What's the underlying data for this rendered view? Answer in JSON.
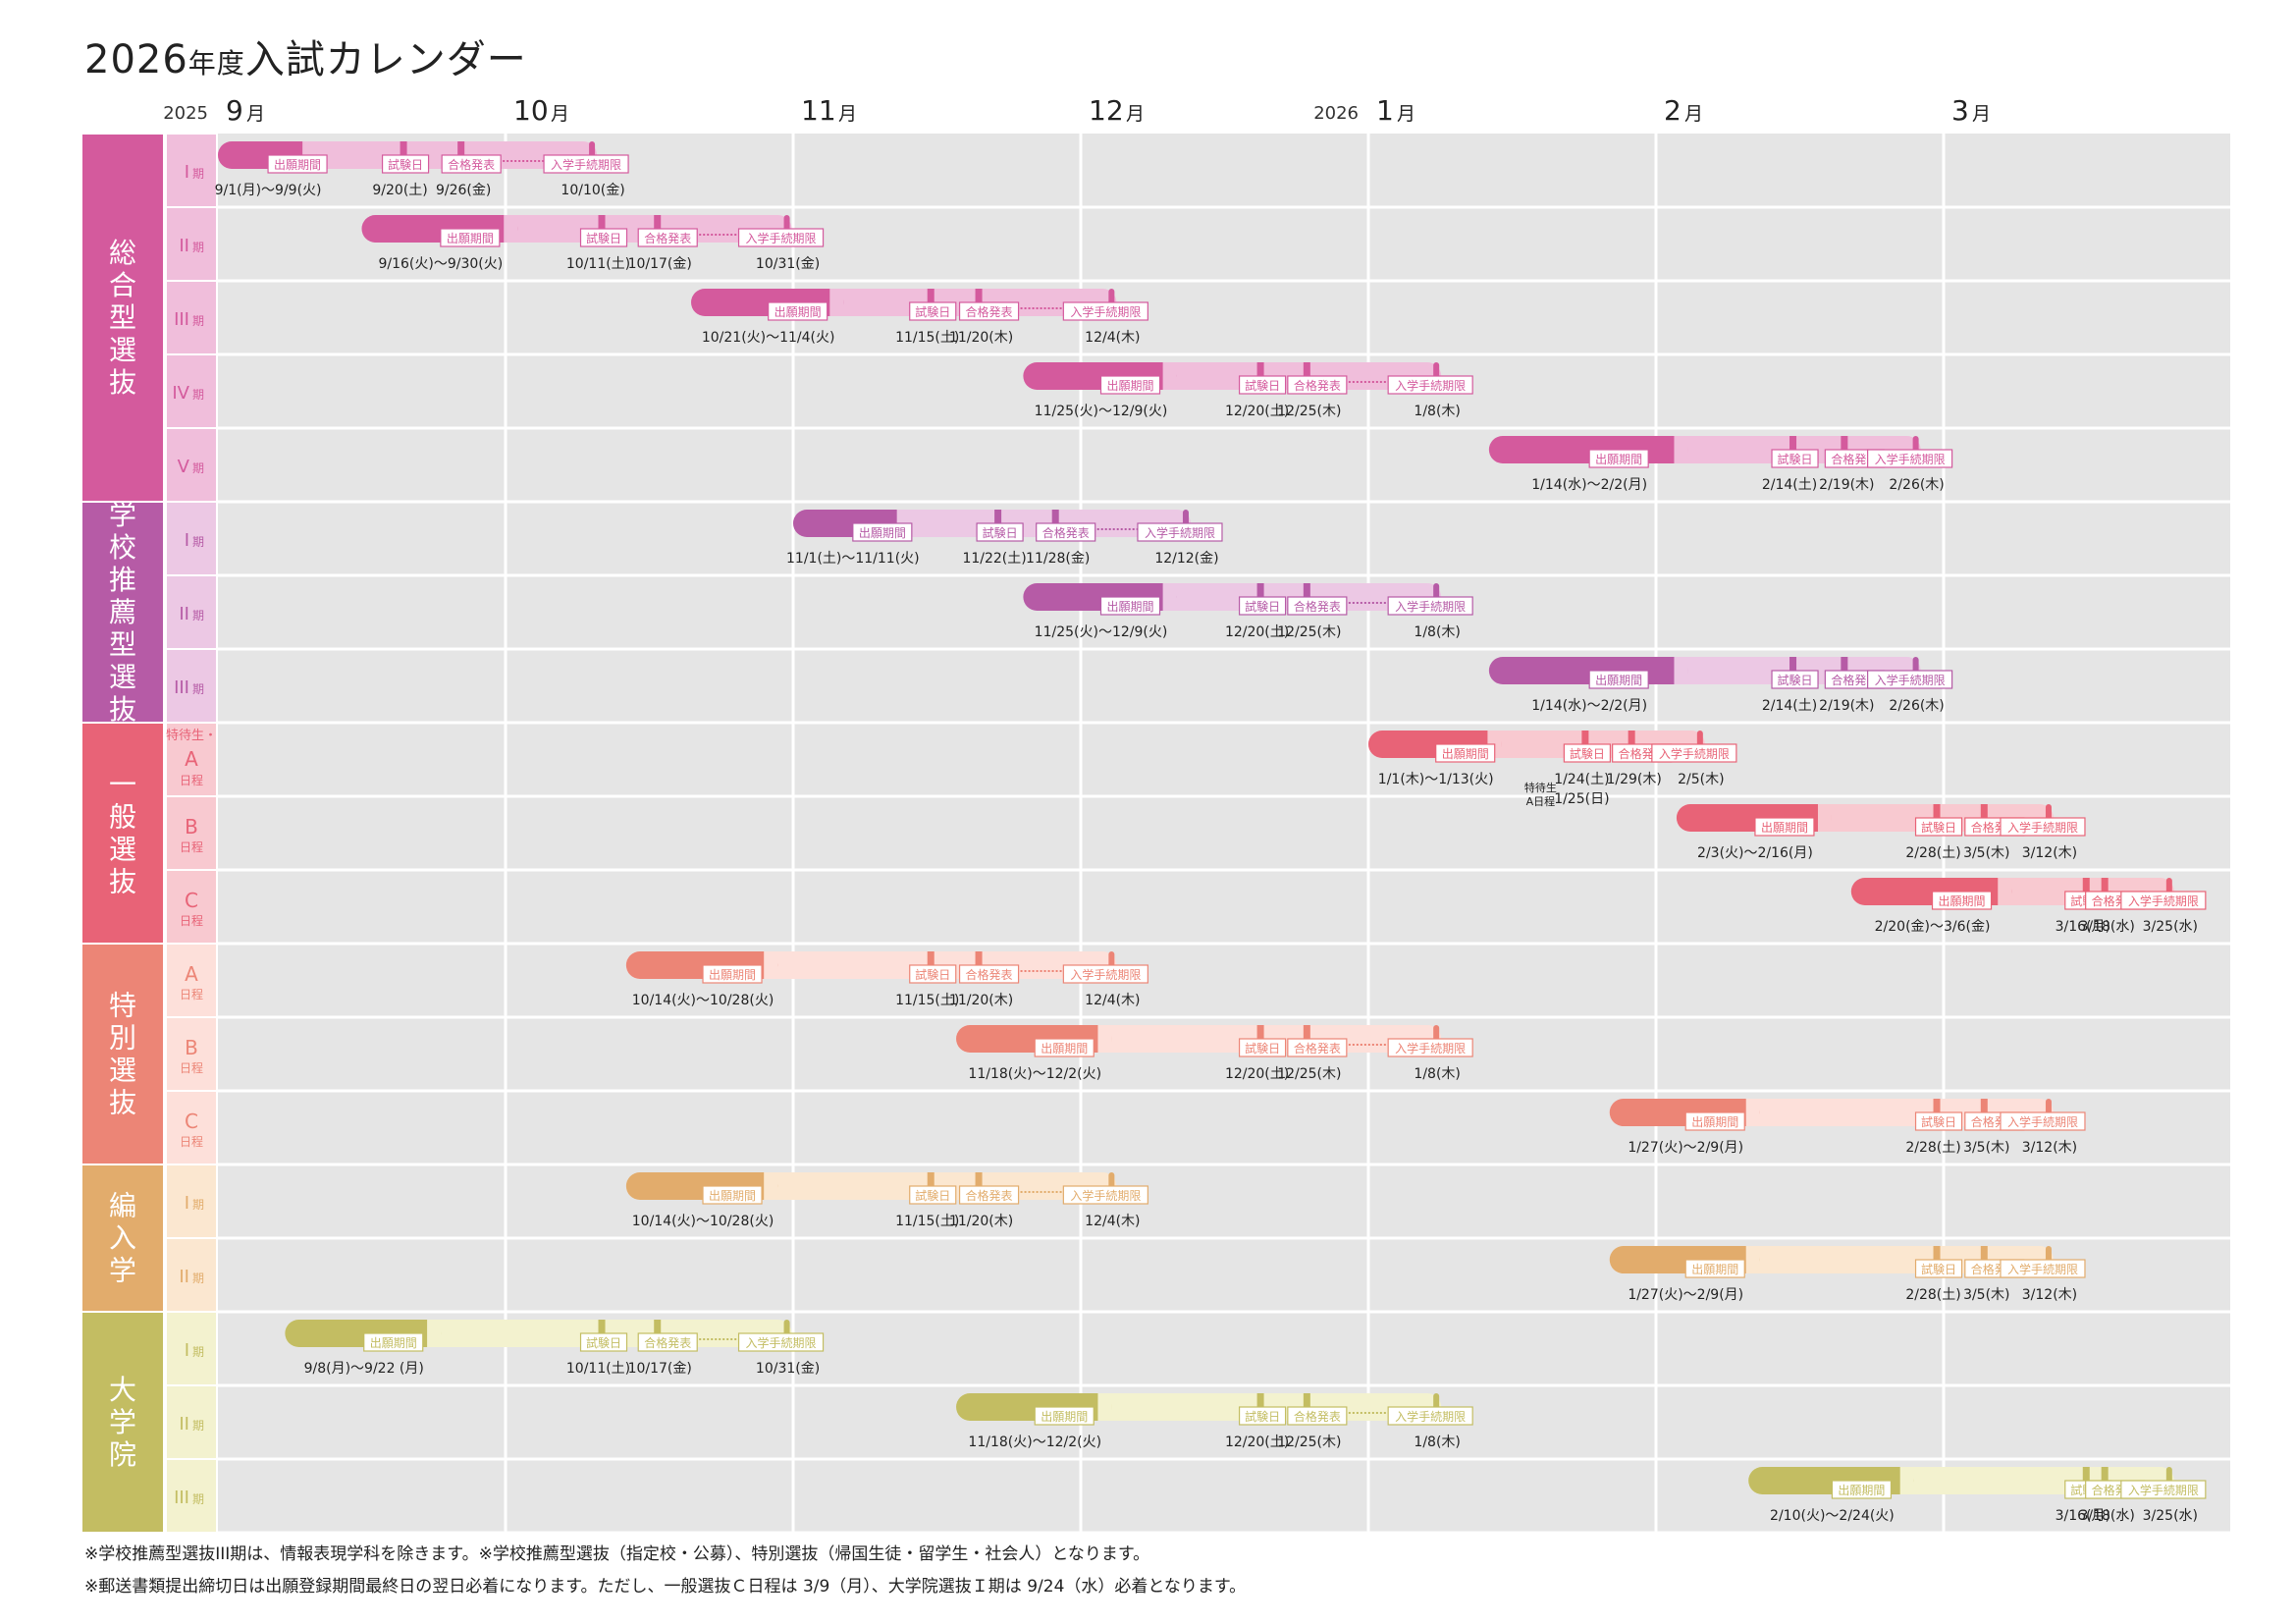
{
  "title": {
    "year": "2026",
    "nendo": "年度",
    "name": "入試カレンダー"
  },
  "colors": {
    "sogo": "#d45a9d",
    "sogo_light": "#f0bedb",
    "gakko": "#b65ba6",
    "gakko_light": "#ecc8e4",
    "ippan": "#e86377",
    "ippan_light": "#f8c9d0",
    "tokubetsu": "#ec8576",
    "tokubetsu_light": "#fde0da",
    "hennyu": "#e2ac6c",
    "hennyu_light": "#fbe7d0",
    "daigakuin": "#c3bd62",
    "daigakuin_light": "#f3f2cf",
    "grid_bg": "#e5e5e5"
  },
  "months": [
    {
      "year": "2025",
      "label": "9",
      "unit": "月"
    },
    {
      "year": "",
      "label": "10",
      "unit": "月"
    },
    {
      "year": "",
      "label": "11",
      "unit": "月"
    },
    {
      "year": "",
      "label": "12",
      "unit": "月"
    },
    {
      "year": "2026",
      "label": "1",
      "unit": "月"
    },
    {
      "year": "",
      "label": "2",
      "unit": "月"
    },
    {
      "year": "",
      "label": "3",
      "unit": "月"
    }
  ],
  "stage_labels": {
    "apply": "出願期間",
    "exam": "試験日",
    "result": "合格発表",
    "proc": "入学手続期限"
  },
  "groups": [
    {
      "name": "総合型選抜",
      "color": "sogo",
      "rows": [
        {
          "label": "I",
          "suffix": "期",
          "apply": [
            "9/1",
            "9/9"
          ],
          "exam": "9/20",
          "result": "9/26",
          "proc": "10/10",
          "d_apply": "9/1(月)～9/9(火)",
          "d_exam": "9/20(土)",
          "d_result": "9/26(金)",
          "d_proc": "10/10(金)"
        },
        {
          "label": "II",
          "suffix": "期",
          "apply": [
            "9/16",
            "9/30"
          ],
          "exam": "10/11",
          "result": "10/17",
          "proc": "10/31",
          "d_apply": "9/16(火)～9/30(火)",
          "d_exam": "10/11(土)",
          "d_result": "10/17(金)",
          "d_proc": "10/31(金)"
        },
        {
          "label": "III",
          "suffix": "期",
          "apply": [
            "10/21",
            "11/4"
          ],
          "exam": "11/15",
          "result": "11/20",
          "proc": "12/4",
          "d_apply": "10/21(火)～11/4(火)",
          "d_exam": "11/15(土)",
          "d_result": "11/20(木)",
          "d_proc": "12/4(木)"
        },
        {
          "label": "IV",
          "suffix": "期",
          "apply": [
            "11/25",
            "12/9"
          ],
          "exam": "12/20",
          "result": "12/25",
          "proc": "1/8",
          "d_apply": "11/25(火)～12/9(火)",
          "d_exam": "12/20(土)",
          "d_result": "12/25(木)",
          "d_proc": "1/8(木)"
        },
        {
          "label": "V",
          "suffix": "期",
          "apply": [
            "1/14",
            "2/2"
          ],
          "exam": "2/14",
          "result": "2/19",
          "proc": "2/26",
          "d_apply": "1/14(水)～2/2(月)",
          "d_exam": "2/14(土)",
          "d_result": "2/19(木)",
          "d_proc": "2/26(木)"
        }
      ]
    },
    {
      "name": "学校推薦型選抜",
      "color": "gakko",
      "rows": [
        {
          "label": "I",
          "suffix": "期",
          "apply": [
            "11/1",
            "11/11"
          ],
          "exam": "11/22",
          "result": "11/28",
          "proc": "12/12",
          "d_apply": "11/1(土)～11/11(火)",
          "d_exam": "11/22(土)",
          "d_result": "11/28(金)",
          "d_proc": "12/12(金)"
        },
        {
          "label": "II",
          "suffix": "期",
          "apply": [
            "11/25",
            "12/9"
          ],
          "exam": "12/20",
          "result": "12/25",
          "proc": "1/8",
          "d_apply": "11/25(火)～12/9(火)",
          "d_exam": "12/20(土)",
          "d_result": "12/25(木)",
          "d_proc": "1/8(木)"
        },
        {
          "label": "III",
          "suffix": "期",
          "apply": [
            "1/14",
            "2/2"
          ],
          "exam": "2/14",
          "result": "2/19",
          "proc": "2/26",
          "d_apply": "1/14(水)～2/2(月)",
          "d_exam": "2/14(土)",
          "d_result": "2/19(木)",
          "d_proc": "2/26(木)"
        }
      ]
    },
    {
      "name": "一般選抜",
      "color": "ippan",
      "rows": [
        {
          "label": "A",
          "prefix": "特待生・",
          "suffix": "日程",
          "apply": [
            "1/1",
            "1/13"
          ],
          "exam": "1/24",
          "exam2": "1/25",
          "result": "1/29",
          "proc": "2/5",
          "d_apply": "1/1(木)～1/13(火)",
          "d_exam": "1/24(土)",
          "d_result": "1/29(木)",
          "d_proc": "2/5(木)",
          "extra1": "特待生",
          "extra2": "A日程",
          "d_exam2": "1/25(日)"
        },
        {
          "label": "B",
          "suffix": "日程",
          "apply": [
            "2/3",
            "2/16"
          ],
          "exam": "2/28",
          "result": "3/5",
          "proc": "3/12",
          "d_apply": "2/3(火)～2/16(月)",
          "d_exam": "2/28(土)",
          "d_result": "3/5(木)",
          "d_proc": "3/12(木)"
        },
        {
          "label": "C",
          "suffix": "日程",
          "apply": [
            "2/20",
            "3/6"
          ],
          "exam": "3/16",
          "result": "3/18",
          "proc": "3/25",
          "d_apply": "2/20(金)～3/6(金)",
          "d_exam": "3/16(月)",
          "d_result": "3/18(水)",
          "d_proc": "3/25(水)"
        }
      ]
    },
    {
      "name": "特別選抜",
      "color": "tokubetsu",
      "rows": [
        {
          "label": "A",
          "suffix": "日程",
          "apply": [
            "10/14",
            "10/28"
          ],
          "exam": "11/15",
          "result": "11/20",
          "proc": "12/4",
          "d_apply": "10/14(火)～10/28(火)",
          "d_exam": "11/15(土)",
          "d_result": "11/20(木)",
          "d_proc": "12/4(木)"
        },
        {
          "label": "B",
          "suffix": "日程",
          "apply": [
            "11/18",
            "12/2"
          ],
          "exam": "12/20",
          "result": "12/25",
          "proc": "1/8",
          "d_apply": "11/18(火)～12/2(火)",
          "d_exam": "12/20(土)",
          "d_result": "12/25(木)",
          "d_proc": "1/8(木)"
        },
        {
          "label": "C",
          "suffix": "日程",
          "apply": [
            "1/27",
            "2/9"
          ],
          "exam": "2/28",
          "result": "3/5",
          "proc": "3/12",
          "d_apply": "1/27(火)～2/9(月)",
          "d_exam": "2/28(土)",
          "d_result": "3/5(木)",
          "d_proc": "3/12(木)"
        }
      ]
    },
    {
      "name": "編入学",
      "color": "hennyu",
      "rows": [
        {
          "label": "I",
          "suffix": "期",
          "apply": [
            "10/14",
            "10/28"
          ],
          "exam": "11/15",
          "result": "11/20",
          "proc": "12/4",
          "d_apply": "10/14(火)～10/28(火)",
          "d_exam": "11/15(土)",
          "d_result": "11/20(木)",
          "d_proc": "12/4(木)"
        },
        {
          "label": "II",
          "suffix": "期",
          "apply": [
            "1/27",
            "2/9"
          ],
          "exam": "2/28",
          "result": "3/5",
          "proc": "3/12",
          "d_apply": "1/27(火)～2/9(月)",
          "d_exam": "2/28(土)",
          "d_result": "3/5(木)",
          "d_proc": "3/12(木)"
        }
      ]
    },
    {
      "name": "大学院",
      "color": "daigakuin",
      "rows": [
        {
          "label": "I",
          "suffix": "期",
          "apply": [
            "9/8",
            "9/22"
          ],
          "exam": "10/11",
          "result": "10/17",
          "proc": "10/31",
          "d_apply": "9/8(月)～9/22 (月)",
          "d_exam": "10/11(土)",
          "d_result": "10/17(金)",
          "d_proc": "10/31(金)"
        },
        {
          "label": "II",
          "suffix": "期",
          "apply": [
            "11/18",
            "12/2"
          ],
          "exam": "12/20",
          "result": "12/25",
          "proc": "1/8",
          "d_apply": "11/18(火)～12/2(火)",
          "d_exam": "12/20(土)",
          "d_result": "12/25(木)",
          "d_proc": "1/8(木)"
        },
        {
          "label": "III",
          "suffix": "期",
          "apply": [
            "2/10",
            "2/24"
          ],
          "exam": "3/16",
          "result": "3/18",
          "proc": "3/25",
          "d_apply": "2/10(火)～2/24(火)",
          "d_exam": "3/16(月)",
          "d_result": "3/18(水)",
          "d_proc": "3/25(水)"
        }
      ]
    }
  ],
  "notes": [
    "※学校推薦型選抜III期は、情報表現学科を除きます。※学校推薦型選抜（指定校・公募）、特別選抜（帰国生徒・留学生・社会人）となります。",
    "※郵送書類提出締切日は出願登録期間最終日の翌日必着になります。ただし、一般選抜Ｃ日程は 3/9（月）、大学院選抜Ｉ期は 9/24（水）必着となります。"
  ]
}
